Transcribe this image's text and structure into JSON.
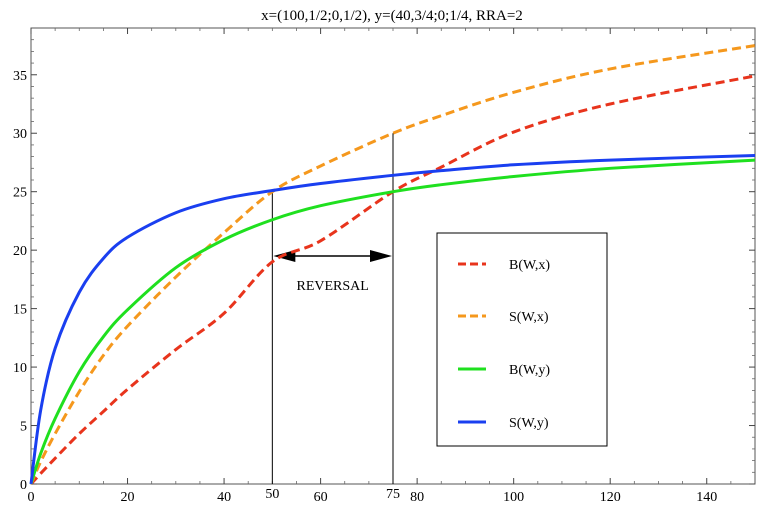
{
  "chart_data": {
    "type": "line",
    "title": "x=(100,1/2;0,1/2), y=(40,3/4;0;1/4, RRA=2",
    "xlabel": "",
    "ylabel": "",
    "xlim": [
      0,
      150
    ],
    "ylim": [
      0,
      39
    ],
    "x_ticks": [
      0,
      20,
      40,
      60,
      80,
      100,
      120,
      140
    ],
    "y_ticks": [
      0,
      5,
      10,
      15,
      20,
      25,
      30,
      35
    ],
    "grid": false,
    "legend_placement": "center-right",
    "x": [
      0,
      2,
      5,
      10,
      15,
      20,
      30,
      40,
      50,
      60,
      75,
      85,
      100,
      120,
      150
    ],
    "series": [
      {
        "name": "B(W,x)",
        "color": "#e8341c",
        "dashed": true,
        "values": [
          0,
          0.9,
          2.2,
          4.3,
          6.2,
          8.1,
          11.5,
          14.6,
          19.0,
          20.8,
          25.0,
          27.1,
          30.1,
          32.5,
          34.9
        ]
      },
      {
        "name": "S(W,x)",
        "color": "#f5981d",
        "dashed": true,
        "values": [
          0,
          1.9,
          4.3,
          7.9,
          11.0,
          13.5,
          17.7,
          21.5,
          25.0,
          27.2,
          30.0,
          31.5,
          33.5,
          35.5,
          37.5
        ]
      },
      {
        "name": "B(W,y)",
        "color": "#1fe01f",
        "dashed": false,
        "values": [
          0,
          2.6,
          5.6,
          9.6,
          12.6,
          14.9,
          18.5,
          20.9,
          22.6,
          23.8,
          25.0,
          25.6,
          26.3,
          27.0,
          27.7
        ]
      },
      {
        "name": "S(W,y)",
        "color": "#1a3ff0",
        "dashed": false,
        "values": [
          0,
          6.3,
          11.6,
          16.4,
          19.3,
          21.1,
          23.2,
          24.4,
          25.1,
          25.7,
          26.4,
          26.8,
          27.3,
          27.7,
          28.1
        ]
      }
    ],
    "annotations": {
      "vertical_lines": [
        50,
        75
      ],
      "extra_tick_labels": [
        "50",
        "75"
      ],
      "arrow_text": "REVERSAL",
      "arrow_from": 50,
      "arrow_to": 75,
      "arrow_y": 19.5
    }
  }
}
